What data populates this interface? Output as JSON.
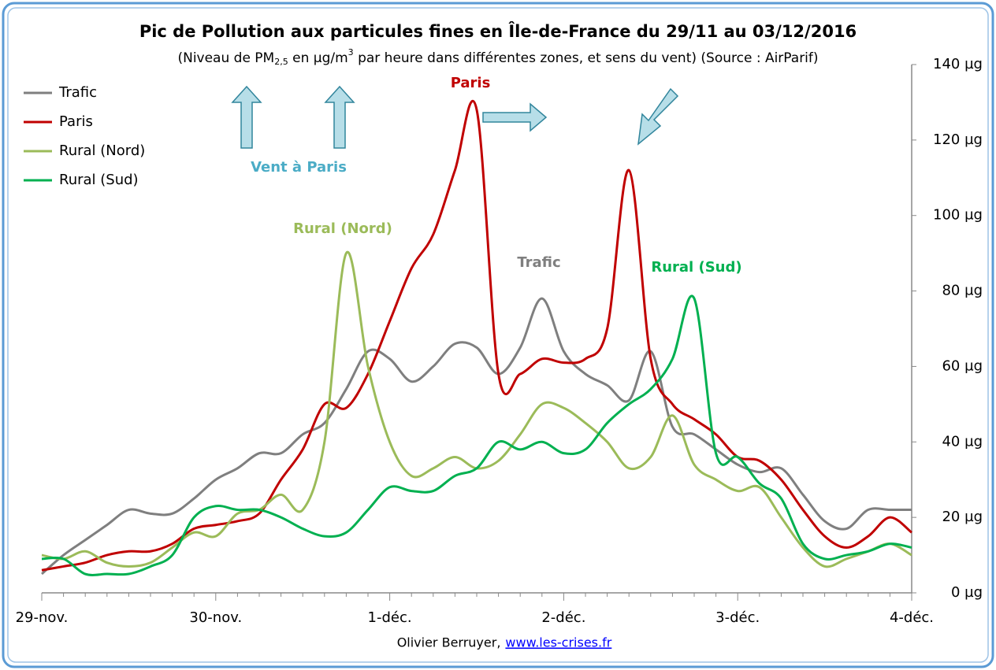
{
  "chart_data": {
    "type": "line",
    "title": "Pic de Pollution aux particules fines en Île-de-France du 29/11 au 03/12/2016",
    "subtitle": [
      "(Niveau de PM",
      "2,5",
      " en µg/m",
      "3",
      " par heure dans différentes zones, et sens du vent) (Source : AirParif)"
    ],
    "categories": [
      "29-nov.",
      null,
      null,
      null,
      null,
      null,
      null,
      null,
      "30-nov.",
      null,
      null,
      null,
      null,
      null,
      null,
      null,
      "1-déc.",
      null,
      null,
      null,
      null,
      null,
      null,
      null,
      "2-déc.",
      null,
      null,
      null,
      null,
      null,
      null,
      null,
      "3-déc.",
      null,
      null,
      null,
      null,
      null,
      null,
      null,
      "4-déc."
    ],
    "series": [
      {
        "name": "Trafic",
        "color": "#7f7f7f",
        "values": [
          5,
          10,
          14,
          18,
          22,
          21,
          21,
          25,
          30,
          33,
          37,
          37,
          42,
          45,
          54,
          64,
          62,
          56,
          60,
          66,
          65,
          58,
          65,
          78,
          64,
          58,
          55,
          51,
          64,
          44,
          42,
          38,
          34,
          32,
          33,
          26,
          19,
          17,
          22,
          22,
          22
        ]
      },
      {
        "name": "Paris",
        "color": "#c00000",
        "values": [
          6,
          7,
          8,
          10,
          11,
          11,
          13,
          17,
          18,
          19,
          21,
          30,
          38,
          50,
          49,
          58,
          72,
          86,
          95,
          112,
          128,
          58,
          58,
          62,
          61,
          62,
          70,
          112,
          62,
          50,
          46,
          42,
          36,
          35,
          30,
          22,
          15,
          12,
          15,
          20,
          16
        ]
      },
      {
        "name": "Rural (Nord)",
        "color": "#9bbb59",
        "values": [
          10,
          9,
          11,
          8,
          7,
          8,
          12,
          16,
          15,
          21,
          22,
          26,
          22,
          40,
          90,
          60,
          40,
          31,
          33,
          36,
          33,
          35,
          42,
          50,
          49,
          45,
          40,
          33,
          36,
          47,
          34,
          30,
          27,
          28,
          20,
          12,
          7,
          9,
          11,
          13,
          10
        ]
      },
      {
        "name": "Rural (Sud)",
        "color": "#00b050",
        "values": [
          9,
          9,
          5,
          5,
          5,
          7,
          10,
          20,
          23,
          22,
          22,
          20,
          17,
          15,
          16,
          22,
          28,
          27,
          27,
          31,
          33,
          40,
          38,
          40,
          37,
          38,
          45,
          50,
          54,
          62,
          78,
          37,
          36,
          29,
          25,
          13,
          9,
          10,
          11,
          13,
          12
        ]
      }
    ],
    "ylim": [
      0,
      140
    ],
    "yticks": [
      {
        "value": 0,
        "label": "0 µg"
      },
      {
        "value": 20,
        "label": "20 µg"
      },
      {
        "value": 40,
        "label": "40 µg"
      },
      {
        "value": 60,
        "label": "60 µg"
      },
      {
        "value": 80,
        "label": "80 µg"
      },
      {
        "value": 100,
        "label": "100 µg"
      },
      {
        "value": 120,
        "label": "120 µg"
      },
      {
        "value": 140,
        "label": "140 µg"
      }
    ],
    "grid": false,
    "legend": "top-left",
    "annotations": [
      {
        "text": "Paris",
        "color": "#c00000"
      },
      {
        "text": "Trafic",
        "color": "#7f7f7f"
      },
      {
        "text": "Rural (Nord)",
        "color": "#9bbb59"
      },
      {
        "text": "Rural (Sud)",
        "color": "#00b050"
      },
      {
        "text": "Vent à Paris",
        "color": "#4bacc6"
      }
    ],
    "footer": {
      "author": "Olivier Berruyer,",
      "link": "www.les-crises.fr"
    }
  }
}
